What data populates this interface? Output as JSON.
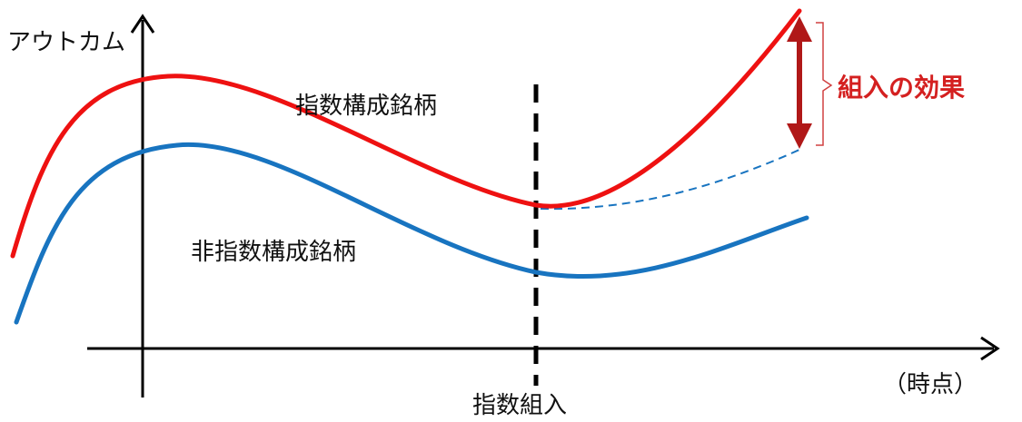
{
  "labels": {
    "y_axis": "アウトカム",
    "x_axis": "（時点）",
    "event": "指数組入",
    "index_constituents": "指数構成銘柄",
    "non_index_constituents": "非指数構成銘柄",
    "effect": "組入の効果"
  },
  "colors": {
    "red_line": "#ee1111",
    "blue_line": "#1874c0",
    "effect_arrow": "#b01818",
    "effect_text": "#d42020",
    "bracket": "#d04040",
    "axis": "#000000"
  }
}
